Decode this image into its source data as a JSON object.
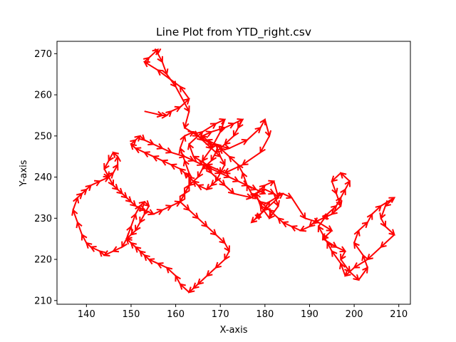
{
  "chart_data": {
    "type": "line",
    "title": "Line Plot from YTD_right.csv",
    "xlabel": "X-axis",
    "ylabel": "Y-axis",
    "xlim": [
      133.4,
      212.6
    ],
    "ylim": [
      209.1,
      273.0
    ],
    "xticks": [
      140,
      150,
      160,
      170,
      180,
      190,
      200,
      210
    ],
    "yticks": [
      210,
      220,
      230,
      240,
      250,
      260,
      270
    ],
    "grid": false,
    "legend": "none",
    "colors": {
      "line": "#1f77b4",
      "arrows": "#ff0000"
    },
    "series": [
      {
        "values_x": [
          153,
          157,
          158,
          159,
          161,
          163,
          161,
          156,
          153,
          154,
          156,
          156,
          157,
          158,
          160,
          163,
          162,
          165,
          168,
          172,
          176,
          179,
          180,
          181,
          179,
          175,
          171,
          167,
          164,
          163,
          166,
          169,
          171,
          170,
          168,
          166,
          168,
          171,
          173,
          177,
          178,
          180,
          182,
          183,
          181,
          179,
          178,
          180,
          182,
          183,
          180,
          178,
          177,
          179,
          181,
          184,
          186,
          189,
          192,
          195,
          193,
          196,
          198,
          197,
          199,
          201,
          203,
          202,
          200,
          201,
          203,
          204,
          206,
          209,
          207,
          206,
          207,
          209,
          206,
          203,
          200,
          198,
          197,
          195,
          194,
          193,
          192,
          194,
          196,
          197,
          198,
          199,
          197,
          195,
          196,
          197,
          195,
          193,
          191,
          190,
          188,
          186,
          184,
          183,
          181,
          179,
          177,
          176,
          175,
          174,
          172,
          170,
          169,
          167,
          166,
          168,
          171,
          173,
          175,
          174,
          173,
          171,
          169,
          168,
          166,
          165,
          163,
          162,
          161,
          163,
          165,
          167,
          169,
          171,
          172,
          171,
          169,
          167,
          165,
          164,
          163,
          161,
          160,
          158,
          156,
          154,
          153,
          152,
          151,
          150,
          149,
          150,
          151,
          152,
          153,
          154,
          153,
          152,
          151,
          150,
          149,
          148,
          146,
          144,
          143,
          141,
          140,
          139,
          138,
          137,
          138,
          139,
          140,
          141,
          143,
          145,
          146,
          147,
          147,
          146,
          145,
          144,
          145,
          146,
          147,
          148,
          149,
          150,
          151,
          153,
          155,
          157,
          159,
          161,
          162,
          163,
          163,
          162,
          161,
          162,
          164,
          166,
          168,
          170,
          171,
          170,
          169,
          168,
          167,
          165,
          164,
          163,
          162,
          161,
          159,
          157,
          155,
          153,
          151,
          150,
          151,
          152,
          153,
          155,
          157,
          159,
          162,
          164,
          166,
          168,
          170,
          172,
          174,
          176,
          178,
          180
        ],
        "values_y": [
          256,
          255,
          255,
          256,
          257,
          259,
          262,
          266,
          268,
          269,
          271,
          270,
          268,
          265,
          262,
          256,
          252,
          250,
          248,
          247,
          249,
          252,
          254,
          250,
          246,
          243,
          241,
          243,
          245,
          248,
          251,
          253,
          254,
          251,
          247,
          244,
          241,
          238,
          236,
          235,
          236,
          237,
          236,
          233,
          230,
          233,
          236,
          238,
          239,
          235,
          232,
          230,
          229,
          231,
          234,
          236,
          235,
          230,
          229,
          227,
          225,
          223,
          222,
          220,
          217,
          215,
          218,
          221,
          224,
          227,
          229,
          231,
          233,
          235,
          233,
          230,
          228,
          226,
          223,
          220,
          218,
          216,
          219,
          222,
          224,
          226,
          228,
          231,
          233,
          235,
          237,
          239,
          241,
          239,
          236,
          233,
          231,
          230,
          229,
          228,
          227,
          228,
          229,
          230,
          232,
          234,
          236,
          238,
          241,
          243,
          245,
          247,
          248,
          249,
          250,
          251,
          252,
          253,
          254,
          252,
          250,
          248,
          246,
          244,
          242,
          240,
          238,
          236,
          234,
          232,
          230,
          228,
          226,
          224,
          222,
          220,
          218,
          216,
          214,
          213,
          212,
          214,
          216,
          218,
          219,
          220,
          221,
          222,
          223,
          224,
          225,
          228,
          231,
          233,
          234,
          233,
          231,
          229,
          227,
          226,
          225,
          223,
          222,
          221,
          222,
          223,
          224,
          226,
          229,
          232,
          235,
          236,
          237,
          238,
          239,
          240,
          241,
          243,
          245,
          246,
          244,
          242,
          240,
          238,
          237,
          236,
          235,
          234,
          233,
          232,
          231,
          232,
          233,
          234,
          236,
          238,
          241,
          244,
          247,
          250,
          251,
          249,
          247,
          245,
          243,
          241,
          239,
          238,
          237,
          238,
          239,
          240,
          241,
          242,
          243,
          244,
          245,
          246,
          247,
          248,
          249,
          250,
          249,
          248,
          247,
          246,
          245,
          244,
          243,
          242,
          241,
          240,
          239,
          238,
          237,
          236
        ]
      }
    ]
  }
}
